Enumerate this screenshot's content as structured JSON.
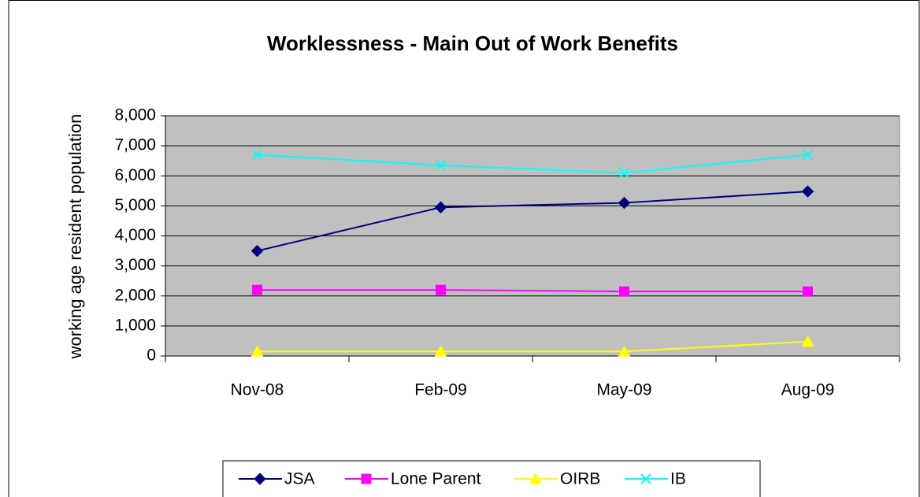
{
  "chart_data": {
    "type": "line",
    "title": "Worklessness - Main Out of Work Benefits",
    "y_label": "working age resident population",
    "categories": [
      "Nov-08",
      "Feb-09",
      "May-09",
      "Aug-09"
    ],
    "series": [
      {
        "name": "JSA",
        "color": "#000080",
        "marker": "diamond",
        "values": [
          3500,
          4950,
          5100,
          5480
        ]
      },
      {
        "name": "Lone Parent",
        "color": "#ff00ff",
        "marker": "square",
        "values": [
          2200,
          2200,
          2150,
          2150
        ]
      },
      {
        "name": "OIRB",
        "color": "#ffff00",
        "marker": "triangle",
        "values": [
          150,
          150,
          150,
          480
        ]
      },
      {
        "name": "IB",
        "color": "#00ffff",
        "marker": "x",
        "values": [
          6700,
          6350,
          6100,
          6700
        ]
      }
    ],
    "ylim": [
      0,
      8000
    ],
    "yticks": [
      0,
      {
        "value": 1000,
        "label": "1,000"
      },
      {
        "value": 2000,
        "label": "2,000"
      },
      {
        "value": 3000,
        "label": "3,000"
      },
      {
        "value": 4000,
        "label": "4,000"
      },
      {
        "value": 5000,
        "label": "5,000"
      },
      {
        "value": 6000,
        "label": "6,000"
      },
      {
        "value": 7000,
        "label": "7,000"
      },
      {
        "value": 8000,
        "label": "8,000"
      }
    ],
    "grid": true,
    "legend": "bottom",
    "plot_background": "#c0c0c0"
  }
}
